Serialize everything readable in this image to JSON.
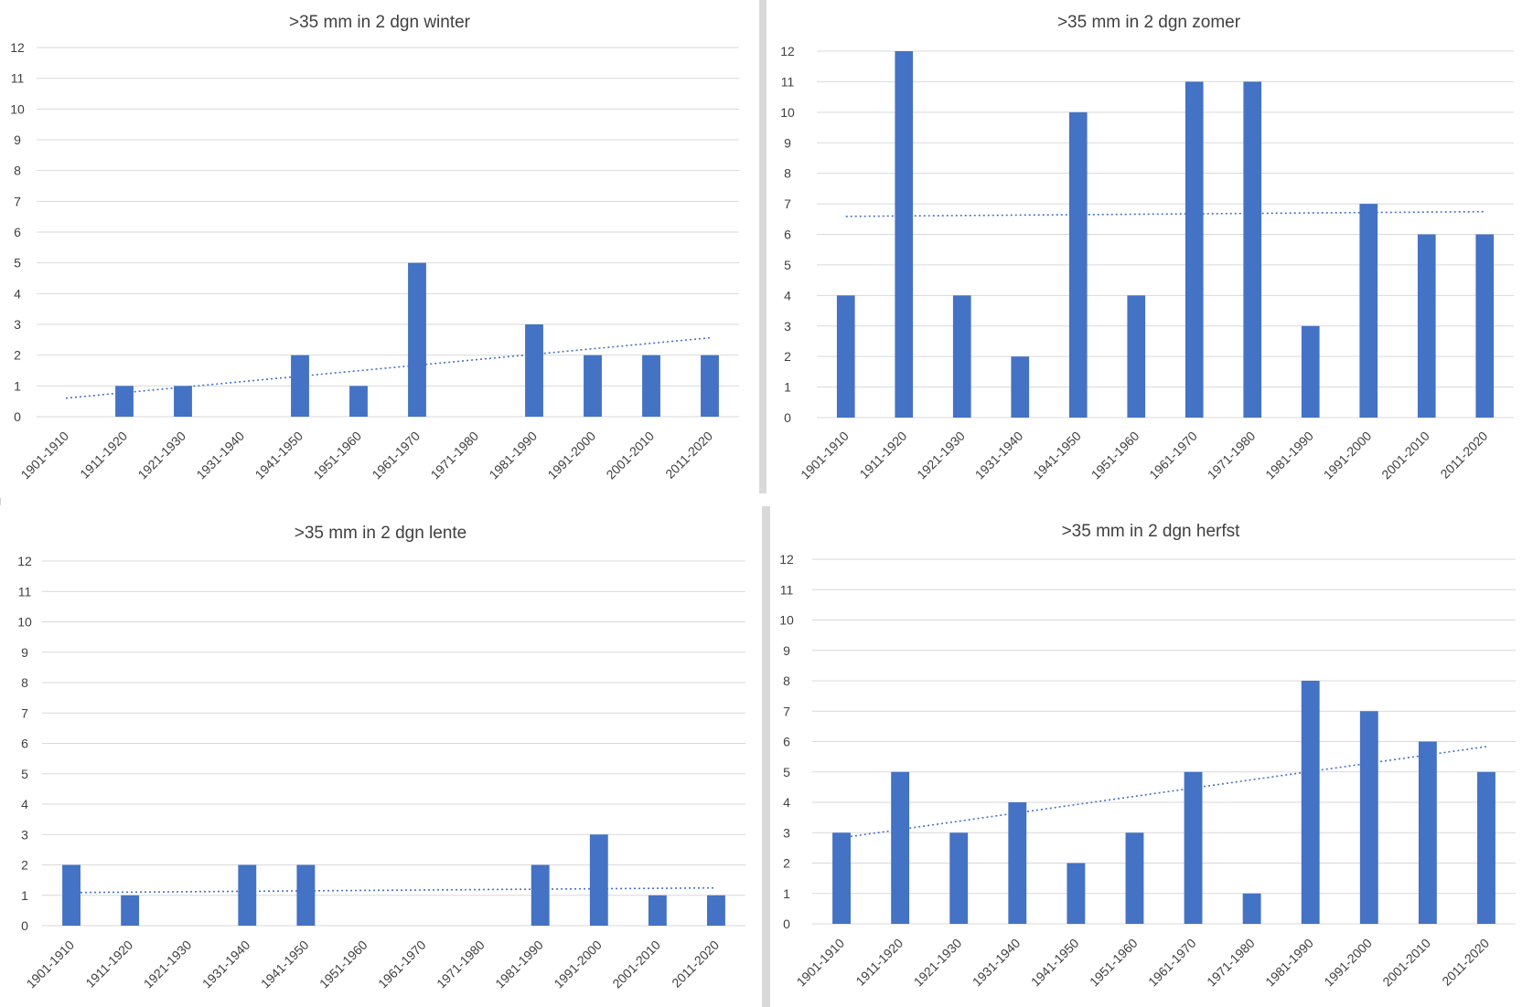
{
  "chart_data": [
    {
      "type": "bar",
      "title": ">35 mm in 2 dgn winter",
      "categories": [
        "1901-1910",
        "1911-1920",
        "1921-1930",
        "1931-1940",
        "1941-1950",
        "1951-1960",
        "1961-1970",
        "1971-1980",
        "1981-1990",
        "1991-2000",
        "2001-2010",
        "2011-2020"
      ],
      "values": [
        0,
        1,
        1,
        0,
        2,
        1,
        5,
        0,
        3,
        2,
        2,
        2
      ],
      "trendline": {
        "type": "linear",
        "style": "dotted"
      },
      "ylim": [
        0,
        12
      ],
      "yticks": [
        "0",
        "1",
        "2",
        "3",
        "4",
        "5",
        "6",
        "7",
        "8",
        "9",
        "10",
        "11",
        "12"
      ],
      "grid": true,
      "legend": "none",
      "bar_color": "#4472c4"
    },
    {
      "type": "bar",
      "title": ">35 mm in 2 dgn zomer",
      "categories": [
        "1901-1910",
        "1911-1920",
        "1921-1930",
        "1931-1940",
        "1941-1950",
        "1951-1960",
        "1961-1970",
        "1971-1980",
        "1981-1990",
        "1991-2000",
        "2001-2010",
        "2011-2020"
      ],
      "values": [
        4,
        12,
        4,
        2,
        10,
        4,
        11,
        11,
        3,
        7,
        6,
        6
      ],
      "trendline": {
        "type": "linear",
        "style": "dotted"
      },
      "ylim": [
        0,
        12
      ],
      "yticks": [
        "0",
        "1",
        "2",
        "3",
        "4",
        "5",
        "6",
        "7",
        "8",
        "9",
        "10",
        "11",
        "12"
      ],
      "grid": true,
      "legend": "none",
      "bar_color": "#4472c4"
    },
    {
      "type": "bar",
      "title": ">35 mm in 2 dgn lente",
      "categories": [
        "1901-1910",
        "1911-1920",
        "1921-1930",
        "1931-1940",
        "1941-1950",
        "1951-1960",
        "1961-1970",
        "1971-1980",
        "1981-1990",
        "1991-2000",
        "2001-2010",
        "2011-2020"
      ],
      "values": [
        2,
        1,
        0,
        2,
        2,
        0,
        0,
        0,
        2,
        3,
        1,
        1
      ],
      "trendline": {
        "type": "linear",
        "style": "dotted"
      },
      "ylim": [
        0,
        12
      ],
      "yticks": [
        "0",
        "1",
        "2",
        "3",
        "4",
        "5",
        "6",
        "7",
        "8",
        "9",
        "10",
        "11",
        "12"
      ],
      "grid": true,
      "legend": "none",
      "bar_color": "#4472c4"
    },
    {
      "type": "bar",
      "title": ">35 mm in 2 dgn herfst",
      "categories": [
        "1901-1910",
        "1911-1920",
        "1921-1930",
        "1931-1940",
        "1941-1950",
        "1951-1960",
        "1961-1970",
        "1971-1980",
        "1981-1990",
        "1991-2000",
        "2001-2010",
        "2011-2020"
      ],
      "values": [
        3,
        5,
        3,
        4,
        2,
        3,
        5,
        1,
        8,
        7,
        6,
        5
      ],
      "trendline": {
        "type": "linear",
        "style": "dotted"
      },
      "ylim": [
        0,
        12
      ],
      "yticks": [
        "0",
        "1",
        "2",
        "3",
        "4",
        "5",
        "6",
        "7",
        "8",
        "9",
        "10",
        "11",
        "12"
      ],
      "grid": true,
      "legend": "none",
      "bar_color": "#4472c4"
    }
  ]
}
